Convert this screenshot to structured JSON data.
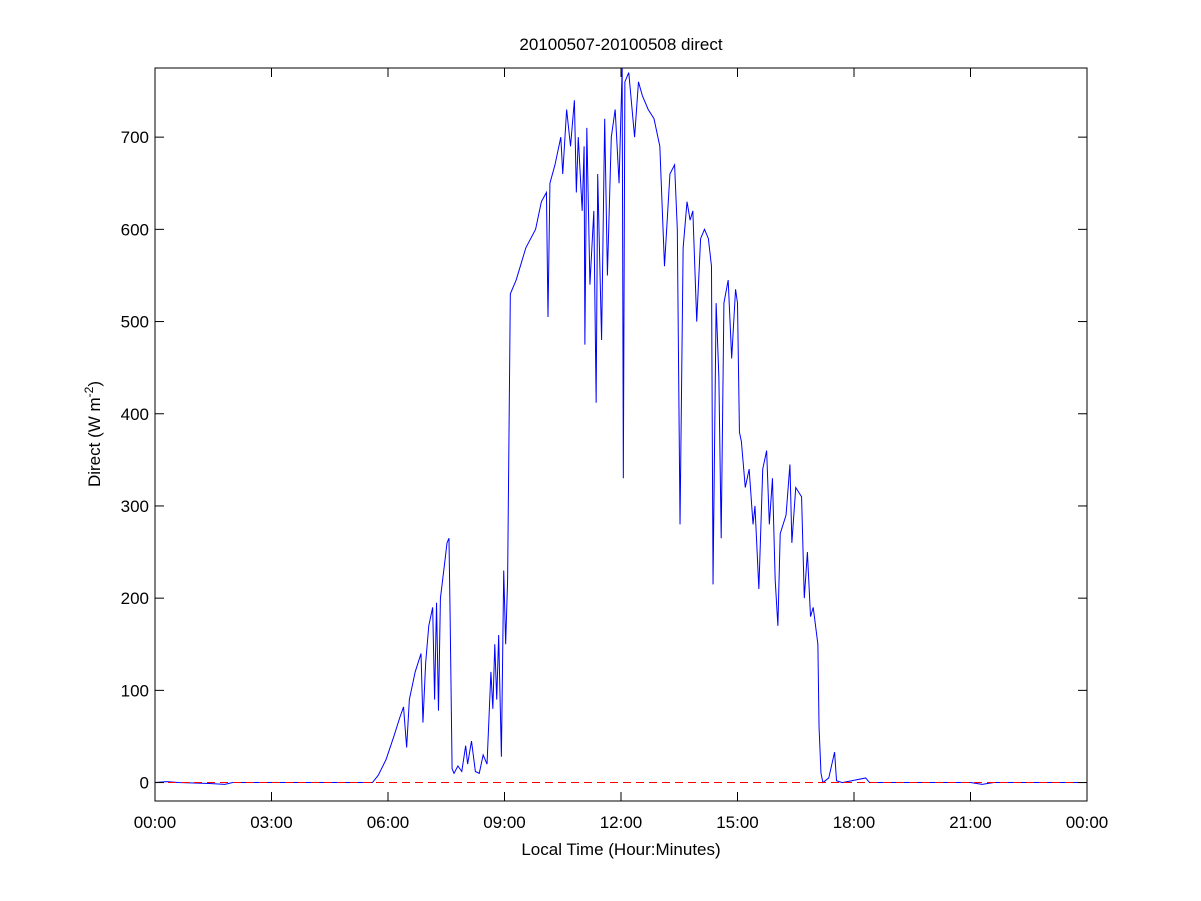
{
  "chart_data": {
    "type": "line",
    "title": "20100507-20100508 direct",
    "xlabel": "Local Time (Hour:Minutes)",
    "ylabel": {
      "text": "Direct (W m",
      "superscript": "-2",
      "suffix": ")"
    },
    "xlim": [
      0,
      24
    ],
    "xticks": [
      {
        "value": 0,
        "label": "00:00"
      },
      {
        "value": 3,
        "label": "03:00"
      },
      {
        "value": 6,
        "label": "06:00"
      },
      {
        "value": 9,
        "label": "09:00"
      },
      {
        "value": 12,
        "label": "12:00"
      },
      {
        "value": 15,
        "label": "15:00"
      },
      {
        "value": 18,
        "label": "18:00"
      },
      {
        "value": 21,
        "label": "21:00"
      },
      {
        "value": 24,
        "label": "00:00"
      }
    ],
    "ylim": [
      -20,
      775
    ],
    "yticks": [
      0,
      100,
      200,
      300,
      400,
      500,
      600,
      700
    ],
    "grid": false,
    "series": [
      {
        "color": "#0000ff",
        "dash": false,
        "x": [
          0,
          0.3,
          0.6,
          1.4,
          1.8,
          2.0,
          5.6,
          5.75,
          5.95,
          6.15,
          6.3,
          6.4,
          6.48,
          6.55,
          6.7,
          6.85,
          6.9,
          6.97,
          7.05,
          7.15,
          7.2,
          7.25,
          7.3,
          7.35,
          7.45,
          7.52,
          7.57,
          7.6,
          7.65,
          7.7,
          7.8,
          7.9,
          8.0,
          8.05,
          8.15,
          8.25,
          8.35,
          8.45,
          8.55,
          8.65,
          8.7,
          8.75,
          8.8,
          8.85,
          8.92,
          8.98,
          9.03,
          9.08,
          9.15,
          9.3,
          9.55,
          9.8,
          9.95,
          10.08,
          10.12,
          10.17,
          10.3,
          10.45,
          10.5,
          10.6,
          10.7,
          10.8,
          10.85,
          10.9,
          11.0,
          11.05,
          11.07,
          11.12,
          11.2,
          11.3,
          11.36,
          11.4,
          11.5,
          11.58,
          11.65,
          11.75,
          11.85,
          11.95,
          12.03,
          12.06,
          12.1,
          12.2,
          12.35,
          12.45,
          12.55,
          12.7,
          12.85,
          12.95,
          13.0,
          13.12,
          13.26,
          13.38,
          13.45,
          13.52,
          13.6,
          13.7,
          13.78,
          13.85,
          13.95,
          14.05,
          14.15,
          14.25,
          14.33,
          14.37,
          14.45,
          14.52,
          14.58,
          14.65,
          14.76,
          14.85,
          14.95,
          15.0,
          15.05,
          15.1,
          15.2,
          15.3,
          15.4,
          15.45,
          15.55,
          15.65,
          15.75,
          15.82,
          15.9,
          15.97,
          16.04,
          16.1,
          16.25,
          16.35,
          16.4,
          16.5,
          16.65,
          16.72,
          16.8,
          16.88,
          16.95,
          17.07,
          17.1,
          17.15,
          17.2,
          17.35,
          17.5,
          17.55,
          17.7,
          18.3,
          18.4,
          21.0,
          21.3,
          21.6,
          24
        ],
        "values": [
          0,
          1,
          0,
          -1,
          -2,
          0,
          0,
          8,
          25,
          50,
          70,
          82,
          38,
          90,
          120,
          140,
          65,
          130,
          170,
          190,
          90,
          195,
          78,
          200,
          235,
          260,
          265,
          180,
          15,
          10,
          18,
          12,
          40,
          20,
          45,
          12,
          10,
          30,
          20,
          120,
          80,
          150,
          90,
          160,
          28,
          230,
          150,
          220,
          530,
          545,
          580,
          600,
          630,
          640,
          505,
          650,
          670,
          700,
          660,
          730,
          690,
          740,
          640,
          700,
          620,
          690,
          475,
          710,
          540,
          620,
          412,
          660,
          480,
          720,
          550,
          700,
          730,
          650,
          775,
          330,
          760,
          770,
          700,
          760,
          745,
          730,
          720,
          700,
          690,
          560,
          660,
          670,
          600,
          280,
          580,
          630,
          610,
          620,
          500,
          590,
          600,
          590,
          560,
          215,
          520,
          440,
          265,
          520,
          545,
          460,
          535,
          520,
          380,
          370,
          320,
          340,
          280,
          300,
          210,
          340,
          360,
          280,
          330,
          220,
          170,
          270,
          290,
          345,
          260,
          320,
          310,
          200,
          250,
          180,
          190,
          150,
          60,
          10,
          0,
          5,
          33,
          2,
          0,
          5,
          0,
          0,
          -2,
          0,
          0
        ]
      },
      {
        "color": "#ff0000",
        "dash": true,
        "x": [
          0,
          24
        ],
        "values": [
          0,
          0
        ]
      }
    ]
  }
}
